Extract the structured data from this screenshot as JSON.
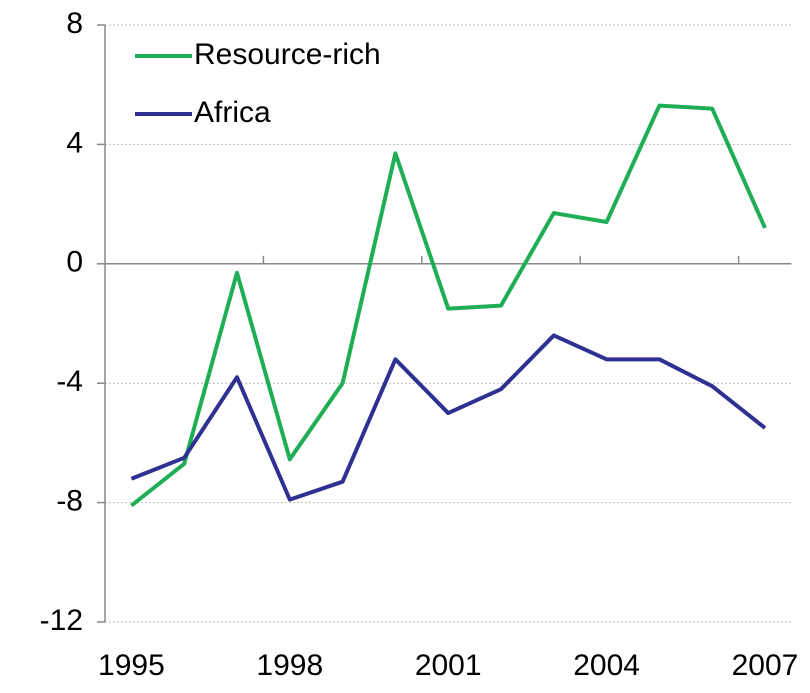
{
  "chart_data": {
    "type": "line",
    "categories": [
      "1995",
      null,
      null,
      "1998",
      null,
      null,
      "2001",
      null,
      null,
      "2004",
      null,
      null,
      "2007"
    ],
    "series": [
      {
        "name": "Resource-rich",
        "color": "#1fae56",
        "values": [
          -8.1,
          -6.7,
          -0.3,
          -6.55,
          -4.0,
          3.7,
          -1.5,
          -1.4,
          1.7,
          1.4,
          5.3,
          5.2,
          1.2
        ]
      },
      {
        "name": "Africa",
        "color": "#2e3192",
        "values": [
          -7.2,
          -6.5,
          -3.8,
          -7.9,
          -7.3,
          -3.2,
          -5.0,
          -4.2,
          -2.4,
          -3.2,
          -3.2,
          -4.1,
          -5.5
        ]
      }
    ],
    "ylim": [
      -12,
      8
    ],
    "yticks": [
      -12,
      -8,
      -4,
      0,
      4,
      8
    ],
    "grid": true,
    "legend": "upper left"
  }
}
